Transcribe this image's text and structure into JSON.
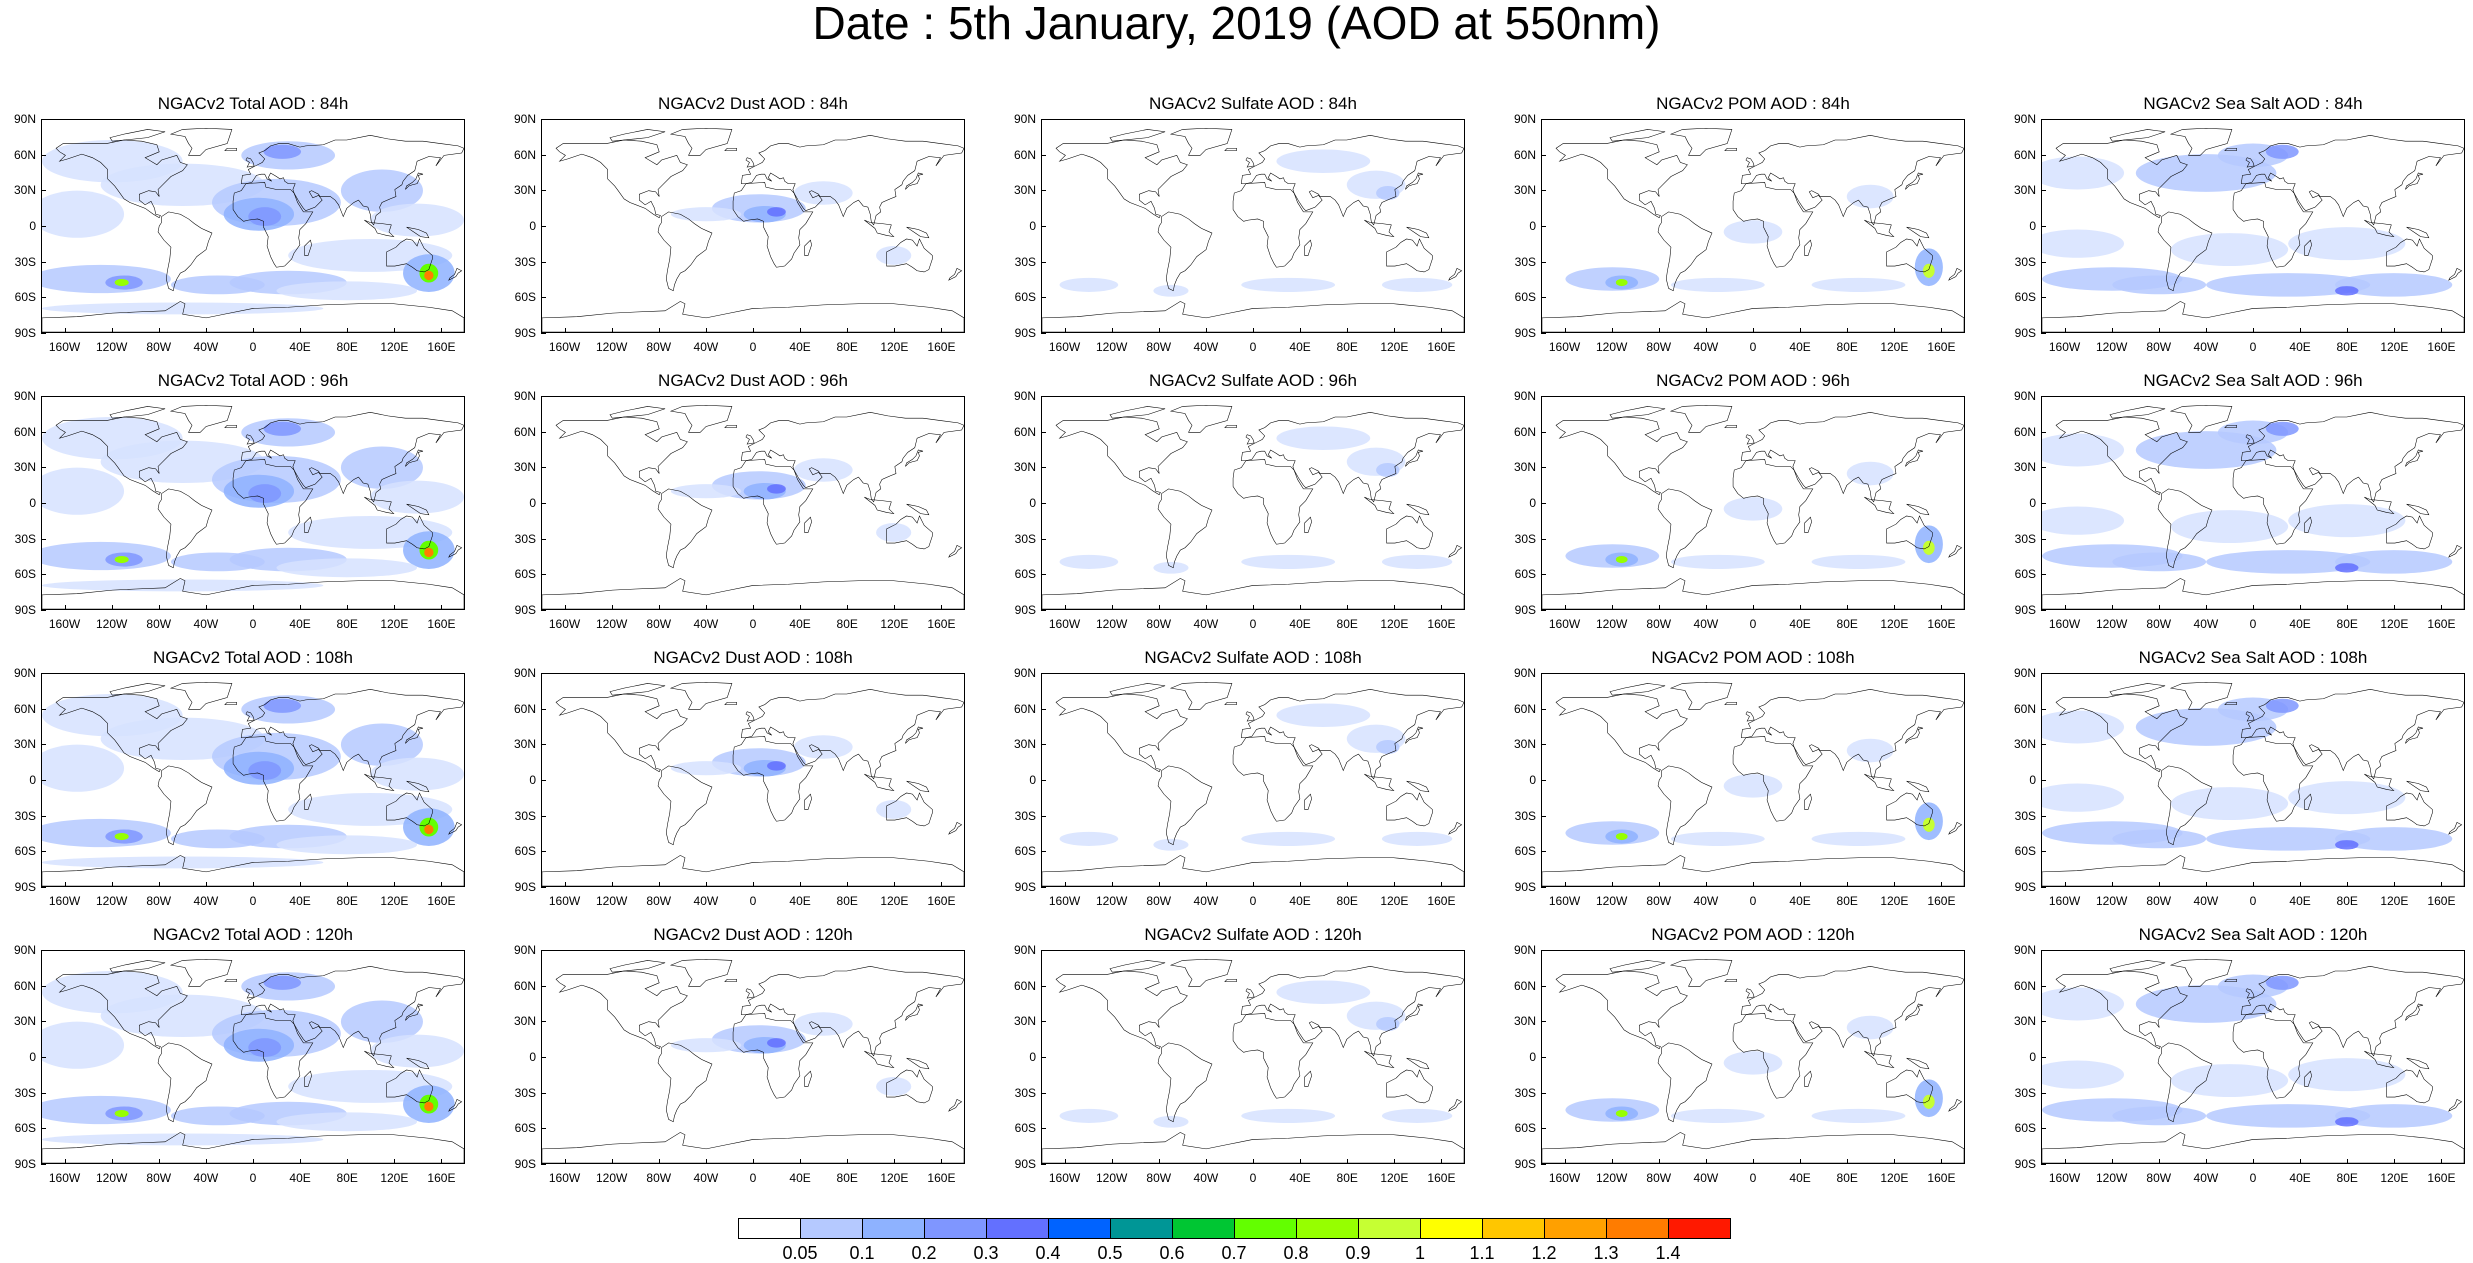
{
  "title": "Date : 5th January, 2019 (AOD at 550nm)",
  "lat_labels": [
    "90N",
    "60N",
    "30N",
    "0",
    "30S",
    "60S",
    "90S"
  ],
  "lon_labels": [
    "160W",
    "120W",
    "80W",
    "40W",
    "0",
    "40E",
    "80E",
    "120E",
    "160E"
  ],
  "lon_values": [
    -160,
    -120,
    -80,
    -40,
    0,
    40,
    80,
    120,
    160
  ],
  "lat_values": [
    90,
    60,
    30,
    0,
    -30,
    -60,
    -90
  ],
  "panels": [
    [
      {
        "title": "NGACv2 Total AOD : 84h",
        "species": "total"
      },
      {
        "title": "NGACv2 Dust AOD : 84h",
        "species": "dust"
      },
      {
        "title": "NGACv2 Sulfate AOD : 84h",
        "species": "sulfate"
      },
      {
        "title": "NGACv2 POM AOD : 84h",
        "species": "pom"
      },
      {
        "title": "NGACv2 Sea Salt AOD : 84h",
        "species": "seasalt"
      }
    ],
    [
      {
        "title": "NGACv2 Total AOD : 96h",
        "species": "total"
      },
      {
        "title": "NGACv2 Dust AOD : 96h",
        "species": "dust"
      },
      {
        "title": "NGACv2 Sulfate AOD : 96h",
        "species": "sulfate"
      },
      {
        "title": "NGACv2 POM AOD : 96h",
        "species": "pom"
      },
      {
        "title": "NGACv2 Sea Salt AOD : 96h",
        "species": "seasalt"
      }
    ],
    [
      {
        "title": "NGACv2 Total AOD : 108h",
        "species": "total"
      },
      {
        "title": "NGACv2 Dust AOD : 108h",
        "species": "dust"
      },
      {
        "title": "NGACv2 Sulfate AOD : 108h",
        "species": "sulfate"
      },
      {
        "title": "NGACv2 POM AOD : 108h",
        "species": "pom"
      },
      {
        "title": "NGACv2 Sea Salt AOD : 108h",
        "species": "seasalt"
      }
    ],
    [
      {
        "title": "NGACv2 Total AOD : 120h",
        "species": "total"
      },
      {
        "title": "NGACv2 Dust AOD : 120h",
        "species": "dust"
      },
      {
        "title": "NGACv2 Sulfate AOD : 120h",
        "species": "sulfate"
      },
      {
        "title": "NGACv2 POM AOD : 120h",
        "species": "pom"
      },
      {
        "title": "NGACv2 Sea Salt  AOD : 120h",
        "species": "seasalt"
      }
    ]
  ],
  "colorbar": {
    "labels": [
      "0.05",
      "0.1",
      "0.2",
      "0.3",
      "0.4",
      "0.5",
      "0.6",
      "0.7",
      "0.8",
      "0.9",
      "1",
      "1.1",
      "1.2",
      "1.3",
      "1.4"
    ],
    "colors": [
      "#ffffff",
      "#d6e2ff",
      "#b5c9ff",
      "#8eb2ff",
      "#7f96ff",
      "#6370ff",
      "#0063ff",
      "#009696",
      "#00c633",
      "#63ff00",
      "#96ff00",
      "#c6ff33",
      "#ffff00",
      "#ffc600",
      "#ffa000",
      "#ff7c00",
      "#ff1900"
    ]
  },
  "colors": {
    "land_outline": "#000000",
    "aod_light": "#d6e2ff",
    "aod_mid": "#8eb2ff",
    "aod_strong": "#6370ff",
    "hotspot_green": "#00c633",
    "hotspot_yellow": "#ffff00",
    "hotspot_red": "#ff1900"
  }
}
